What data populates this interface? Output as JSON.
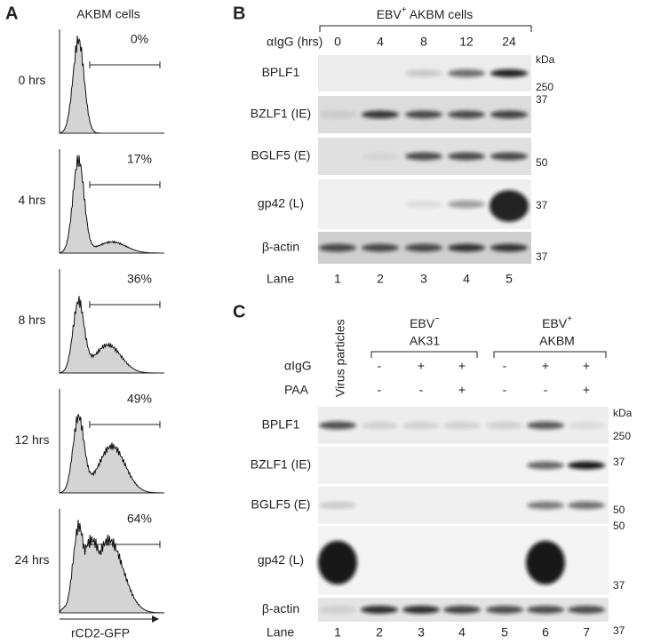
{
  "panel_a": {
    "label": "A",
    "title": "AKBM cells",
    "x_label": "rCD2-GFP",
    "rows": [
      {
        "time": "0 hrs",
        "percent": "0%"
      },
      {
        "time": "4 hrs",
        "percent": "17%"
      },
      {
        "time": "8 hrs",
        "percent": "36%"
      },
      {
        "time": "12 hrs",
        "percent": "49%"
      },
      {
        "time": "24 hrs",
        "percent": "64%"
      }
    ]
  },
  "panel_b": {
    "label": "B",
    "group": {
      "text": "EBV",
      "sup": "+",
      "rest": " AKBM cells"
    },
    "condition_label": "αIgG (hrs)",
    "conditions": [
      "0",
      "4",
      "8",
      "12",
      "24"
    ],
    "blots": [
      "BPLF1",
      "BZLF1 (IE)",
      "BGLF5 (E)",
      "gp42 (L)",
      "β-actin"
    ],
    "markers": [
      "kDa",
      "250",
      "37",
      "50",
      "37",
      "37"
    ],
    "lane_label": "Lane",
    "lanes": [
      "1",
      "2",
      "3",
      "4",
      "5"
    ]
  },
  "panel_c": {
    "label": "C",
    "virus_label": "Virus particles",
    "groups": [
      {
        "text": "EBV",
        "sup": "−",
        "line2": "AK31"
      },
      {
        "text": "EBV",
        "sup": "+",
        "line2": "AKBM"
      }
    ],
    "treatments": [
      {
        "name": "αIgG",
        "values": [
          "-",
          "+",
          "+",
          "-",
          "+",
          "+"
        ]
      },
      {
        "name": "PAA",
        "values": [
          "-",
          "-",
          "+",
          "-",
          "-",
          "+"
        ]
      }
    ],
    "blots": [
      "BPLF1",
      "BZLF1 (IE)",
      "BGLF5 (E)",
      "gp42 (L)",
      "β-actin"
    ],
    "markers": [
      "kDa",
      "250",
      "37",
      "50",
      "50",
      "37",
      "37"
    ],
    "lane_label": "Lane",
    "lanes": [
      "1",
      "2",
      "3",
      "4",
      "5",
      "6",
      "7"
    ]
  }
}
